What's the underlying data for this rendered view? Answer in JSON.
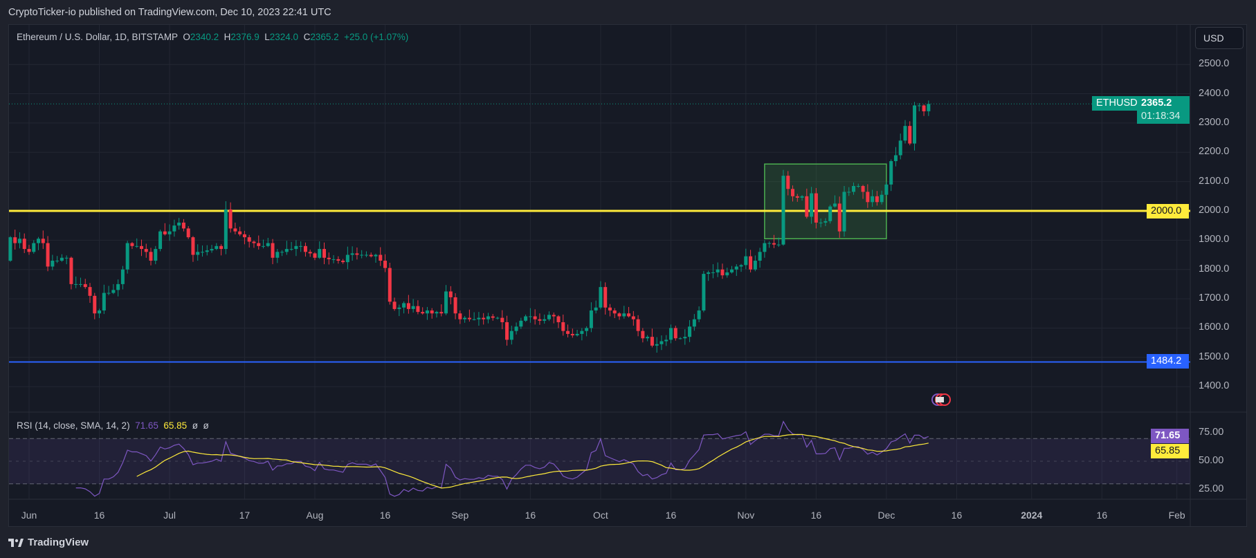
{
  "header": {
    "published": "CryptoTicker-io published on TradingView.com, Dec 10, 2023 22:41 UTC"
  },
  "legend": {
    "symbol": "Ethereum / U.S. Dollar, 1D, BITSTAMP",
    "o_label": "O",
    "o": "2340.2",
    "h_label": "H",
    "h": "2376.9",
    "l_label": "L",
    "l": "2324.0",
    "c_label": "C",
    "c": "2365.2",
    "change": "+25.0 (+1.07%)"
  },
  "currency_button": "USD",
  "price_tags": {
    "symbol": "ETHUSD",
    "last": "2365.2",
    "countdown": "01:18:34",
    "level_yellow": "2000.0",
    "level_blue": "1484.2"
  },
  "rsi": {
    "label": "RSI (14, close, SMA, 14, 2)",
    "value": "71.65",
    "sma": "65.85",
    "extra1": "ø",
    "extra2": "ø",
    "scale": [
      "75.00",
      "50.00",
      "25.00"
    ]
  },
  "footer": {
    "brand": "TradingView"
  },
  "colors": {
    "up": "#089981",
    "down": "#f23645",
    "yellow": "#ffeb3b",
    "blue": "#2962ff",
    "rsi": "#7e57c2",
    "rsi_sma": "#ffeb3b"
  },
  "chart_data": {
    "type": "candlestick",
    "title": "Ethereum / U.S. Dollar, 1D, BITSTAMP",
    "start_date": "2023-05-28",
    "first_open": 1830,
    "closes": [
      1910,
      1890,
      1905,
      1870,
      1860,
      1890,
      1905,
      1890,
      1810,
      1830,
      1830,
      1840,
      1840,
      1750,
      1750,
      1750,
      1740,
      1710,
      1650,
      1660,
      1720,
      1720,
      1730,
      1750,
      1800,
      1890,
      1880,
      1880,
      1870,
      1860,
      1830,
      1870,
      1930,
      1920,
      1930,
      1950,
      1960,
      1940,
      1910,
      1850,
      1860,
      1860,
      1865,
      1870,
      1880,
      1870,
      2005,
      1940,
      1930,
      1920,
      1910,
      1895,
      1890,
      1880,
      1880,
      1890,
      1840,
      1860,
      1860,
      1870,
      1870,
      1880,
      1880,
      1860,
      1855,
      1840,
      1870,
      1840,
      1835,
      1835,
      1830,
      1825,
      1850,
      1855,
      1850,
      1850,
      1850,
      1845,
      1850,
      1830,
      1805,
      1690,
      1665,
      1670,
      1685,
      1665,
      1675,
      1655,
      1650,
      1660,
      1650,
      1655,
      1650,
      1725,
      1705,
      1650,
      1630,
      1635,
      1630,
      1630,
      1635,
      1630,
      1640,
      1635,
      1635,
      1620,
      1560,
      1590,
      1605,
      1625,
      1640,
      1640,
      1630,
      1625,
      1630,
      1645,
      1640,
      1620,
      1590,
      1580,
      1575,
      1580,
      1590,
      1600,
      1660,
      1670,
      1740,
      1670,
      1660,
      1650,
      1640,
      1650,
      1640,
      1630,
      1590,
      1565,
      1570,
      1540,
      1545,
      1555,
      1560,
      1600,
      1565,
      1565,
      1570,
      1605,
      1630,
      1660,
      1785,
      1790,
      1790,
      1800,
      1780,
      1790,
      1800,
      1810,
      1815,
      1845,
      1800,
      1830,
      1860,
      1890,
      1890,
      1885,
      1885,
      2120,
      2075,
      2050,
      2045,
      2050,
      1980,
      2060,
      1960,
      1960,
      1965,
      2015,
      2025,
      1930,
      2065,
      2065,
      2085,
      2085,
      2065,
      2030,
      2050,
      2030,
      2055,
      2090,
      2170,
      2190,
      2240,
      2290,
      2230,
      2360,
      2360,
      2340,
      2365.2
    ],
    "last_candle": {
      "open": 2340.2,
      "high": 2376.9,
      "low": 2324.0,
      "close": 2365.2
    },
    "y_ticks": [
      "2500.0",
      "2400.0",
      "2300.0",
      "2200.0",
      "2100.0",
      "2000.0",
      "1900.0",
      "1800.0",
      "1700.0",
      "1600.0",
      "1500.0",
      "1400.0"
    ],
    "x_ticks": [
      {
        "label": "Jun",
        "day": 0
      },
      {
        "label": "16",
        "day": 15
      },
      {
        "label": "Jul",
        "day": 30
      },
      {
        "label": "17",
        "day": 46
      },
      {
        "label": "Aug",
        "day": 61
      },
      {
        "label": "16",
        "day": 76
      },
      {
        "label": "Sep",
        "day": 92
      },
      {
        "label": "16",
        "day": 107
      },
      {
        "label": "Oct",
        "day": 122
      },
      {
        "label": "16",
        "day": 137
      },
      {
        "label": "Nov",
        "day": 153
      },
      {
        "label": "16",
        "day": 168
      },
      {
        "label": "Dec",
        "day": 183
      },
      {
        "label": "16",
        "day": 198
      },
      {
        "label": "2024",
        "day": 214
      },
      {
        "label": "16",
        "day": 229
      },
      {
        "label": "Feb",
        "day": 245
      }
    ],
    "horizontal_levels": [
      2000.0,
      1484.2
    ],
    "range_box": {
      "from_day": 157,
      "to_day": 183,
      "top": 2160,
      "bottom": 1905
    },
    "rsi_levels": [
      70,
      50,
      30
    ],
    "ylim": [
      1340,
      2570
    ]
  }
}
